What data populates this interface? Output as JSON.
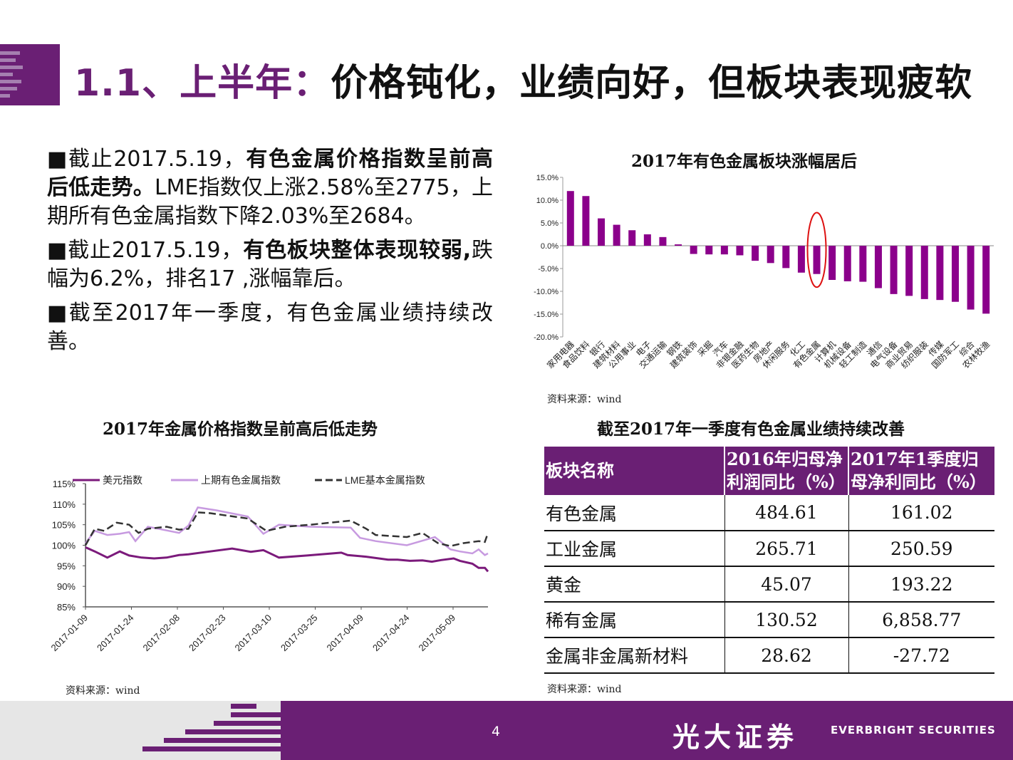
{
  "header": {
    "title_num": "1.1、上半年：",
    "title_main": "价格钝化，业绩向好，但板块表现疲软"
  },
  "bullets": [
    {
      "marker": "■",
      "pre": "截止2017.5.19，",
      "bold": "有色金属价格指数呈前高后低走势。",
      "post": "LME指数仅上涨2.58%至2775，上期所有色金属指数下降2.03%至2684。"
    },
    {
      "marker": "■",
      "pre": "截止2017.5.19，",
      "bold": "有色板块整体表现较弱,",
      "post": "跌幅为6.2%，排名17 ,涨幅靠后。"
    },
    {
      "marker": "■",
      "pre": "截至2017年一季度，有色金属业绩持续改善。",
      "bold": "",
      "post": ""
    }
  ],
  "bar_chart": {
    "title": "2017年有色金属板块涨幅居后",
    "source": "资料来源：wind"
  },
  "line_chart": {
    "title": "2017年金属价格指数呈前高后低走势",
    "source": "资料来源：wind"
  },
  "table": {
    "title": "截至2017年一季度有色金属业绩持续改善",
    "headers": [
      "板块名称",
      "2016年归母净利润同比（%）",
      "2017年1季度归母净利同比（%）"
    ],
    "rows": [
      [
        "有色金属",
        "484.61",
        "161.02"
      ],
      [
        "工业金属",
        "265.71",
        "250.59"
      ],
      [
        "黄金",
        "45.07",
        "193.22"
      ],
      [
        "稀有金属",
        "130.52",
        "6,858.77"
      ],
      [
        "金属非金属新材料",
        "28.62",
        "-27.72"
      ]
    ],
    "source": "资料来源：wind"
  },
  "footer": {
    "page": "4",
    "brand_cn": "光大证券",
    "brand_en": "EVERBRIGHT SECURITIES"
  },
  "colors": {
    "brand": "#6a1f74",
    "bar": "#8b008b",
    "usd": "#7b1a7b",
    "shfe": "#c79ae0",
    "lme": "#333333"
  },
  "chart_data": [
    {
      "type": "bar",
      "title": "2017年有色金属板块涨幅居后",
      "categories": [
        "家用电器",
        "食品饮料",
        "银行",
        "建筑材料",
        "公用事业",
        "电子",
        "交通运输",
        "钢铁",
        "建筑装饰",
        "采掘",
        "汽车",
        "非银金融",
        "医药生物",
        "房地产",
        "休闲服务",
        "化工",
        "有色金属",
        "计算机",
        "机械设备",
        "轻工制造",
        "通信",
        "电气设备",
        "商业贸易",
        "纺织服装",
        "传媒",
        "国防军工",
        "综合",
        "农林牧渔"
      ],
      "values": [
        12.0,
        10.9,
        6.0,
        4.6,
        3.4,
        2.5,
        1.9,
        0.3,
        -1.8,
        -1.9,
        -1.9,
        -2.1,
        -3.3,
        -3.8,
        -4.9,
        -5.9,
        -6.2,
        -7.5,
        -7.8,
        -7.9,
        -9.3,
        -10.6,
        -11.0,
        -11.7,
        -11.9,
        -12.3,
        -14.0,
        -14.9
      ],
      "ylim": [
        -20,
        15
      ],
      "yticks": [
        "15.0%",
        "10.0%",
        "5.0%",
        "0.0%",
        "-5.0%",
        "-10.0%",
        "-15.0%",
        "-20.0%"
      ],
      "highlight": "有色金属"
    },
    {
      "type": "line",
      "title": "2017年金属价格指数呈前高后低走势",
      "x": [
        "2017-01-09",
        "2017-01-24",
        "2017-02-08",
        "2017-02-23",
        "2017-03-10",
        "2017-03-25",
        "2017-04-09",
        "2017-04-24",
        "2017-05-09"
      ],
      "ylim": [
        85,
        115
      ],
      "yticks": [
        "115%",
        "110%",
        "105%",
        "100%",
        "95%",
        "90%",
        "85%"
      ],
      "series": [
        {
          "name": "美元指数",
          "values": [
            [
              0,
              99.5
            ],
            [
              3,
              98.5
            ],
            [
              7,
              97.0
            ],
            [
              11,
              98.5
            ],
            [
              14,
              97.5
            ],
            [
              18,
              97.0
            ],
            [
              22,
              96.8
            ],
            [
              26,
              97.0
            ],
            [
              30,
              97.6
            ],
            [
              33,
              97.8
            ],
            [
              38,
              98.3
            ],
            [
              47,
              99.2
            ],
            [
              53,
              98.4
            ],
            [
              57,
              98.8
            ],
            [
              62,
              97.0
            ],
            [
              71,
              97.5
            ],
            [
              79,
              98.0
            ],
            [
              82,
              98.2
            ],
            [
              84,
              97.6
            ],
            [
              90,
              97.2
            ],
            [
              97,
              96.5
            ],
            [
              100,
              96.5
            ],
            [
              104,
              96.2
            ],
            [
              108,
              96.3
            ],
            [
              111,
              96.0
            ],
            [
              114,
              96.4
            ],
            [
              118,
              96.8
            ],
            [
              120,
              96.2
            ],
            [
              124,
              95.5
            ],
            [
              126,
              94.5
            ],
            [
              128,
              94.5
            ],
            [
              129,
              93.6
            ]
          ]
        },
        {
          "name": "上期有色金属指数",
          "values": [
            [
              0,
              100.5
            ],
            [
              3,
              103.5
            ],
            [
              7,
              102.5
            ],
            [
              11,
              102.8
            ],
            [
              14,
              103.2
            ],
            [
              16,
              101.0
            ],
            [
              20,
              104.5
            ],
            [
              26,
              103.6
            ],
            [
              30,
              103.0
            ],
            [
              33,
              104.8
            ],
            [
              36,
              109.2
            ],
            [
              42,
              108.5
            ],
            [
              52,
              107.0
            ],
            [
              57,
              102.8
            ],
            [
              62,
              105.0
            ],
            [
              72,
              104.5
            ],
            [
              85,
              104.3
            ],
            [
              88,
              101.8
            ],
            [
              93,
              101.0
            ],
            [
              103,
              100.0
            ],
            [
              112,
              102.0
            ],
            [
              117,
              99.0
            ],
            [
              120,
              98.5
            ],
            [
              124,
              98.0
            ],
            [
              126,
              99.0
            ],
            [
              128,
              97.6
            ],
            [
              129,
              98.0
            ]
          ]
        },
        {
          "name": "LME基本金属指数",
          "values": [
            [
              0,
              100.0
            ],
            [
              3,
              104.0
            ],
            [
              6,
              103.5
            ],
            [
              10,
              105.5
            ],
            [
              14,
              105.0
            ],
            [
              17,
              103.0
            ],
            [
              20,
              104.0
            ],
            [
              26,
              104.5
            ],
            [
              30,
              103.8
            ],
            [
              33,
              104.0
            ],
            [
              36,
              108.0
            ],
            [
              40,
              107.8
            ],
            [
              52,
              106.5
            ],
            [
              58,
              103.5
            ],
            [
              64,
              104.5
            ],
            [
              72,
              105.0
            ],
            [
              85,
              106.0
            ],
            [
              90,
              104.0
            ],
            [
              93,
              102.5
            ],
            [
              103,
              102.0
            ],
            [
              108,
              103.0
            ],
            [
              113,
              100.5
            ],
            [
              117,
              99.8
            ],
            [
              121,
              100.5
            ],
            [
              126,
              101.0
            ],
            [
              128,
              100.8
            ],
            [
              129,
              103.0
            ]
          ]
        }
      ]
    }
  ]
}
